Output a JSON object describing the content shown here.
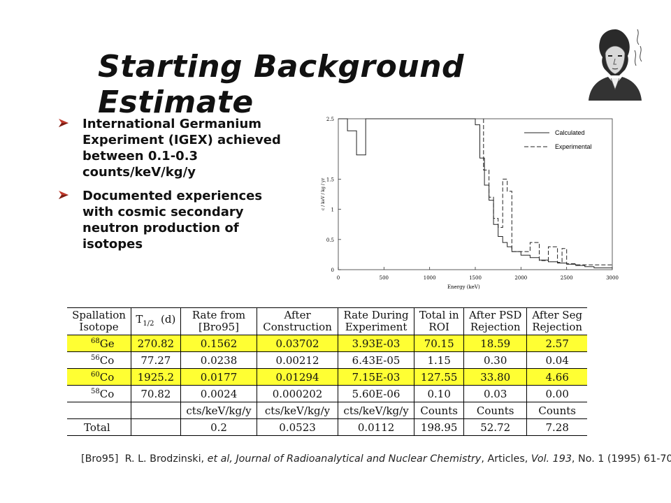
{
  "slide": {
    "title": "Starting Background Estimate",
    "bullets": [
      "International Germanium Experiment (IGEX) achieved between 0.1-0.3 counts/keV/kg/y",
      "Documented experiences with cosmic secondary neutron production of isotopes"
    ]
  },
  "chart_data": {
    "type": "line",
    "xlabel": "Energy (keV)",
    "ylabel": "c / keV / kg / yr",
    "xlim": [
      0,
      3000
    ],
    "ylim": [
      0,
      2.5
    ],
    "x_ticks": [
      "0",
      "500",
      "1000",
      "1500",
      "2000",
      "2500",
      "3000"
    ],
    "y_ticks": [
      "0",
      "0.5",
      "1",
      "1.5",
      "2.5"
    ],
    "legend_position": "top-right",
    "series": [
      {
        "name": "Calculated",
        "style": "solid",
        "x": [
          0,
          100,
          100,
          200,
          200,
          300,
          300,
          1500,
          1500,
          1550,
          1550,
          1600,
          1600,
          1650,
          1650,
          1700,
          1700,
          1750,
          1750,
          1800,
          1800,
          1850,
          1850,
          1900,
          1900,
          2000,
          2000,
          2100,
          2100,
          2200,
          2200,
          2300,
          2300,
          2400,
          2400,
          2500,
          2500,
          2600,
          2600,
          2700,
          2700,
          2800,
          2800,
          3000
        ],
        "y": [
          2.5,
          2.5,
          2.3,
          2.3,
          1.9,
          1.9,
          2.5,
          2.5,
          2.4,
          2.4,
          1.85,
          1.85,
          1.4,
          1.4,
          1.15,
          1.15,
          0.75,
          0.75,
          0.55,
          0.55,
          0.45,
          0.45,
          0.38,
          0.38,
          0.3,
          0.3,
          0.24,
          0.24,
          0.2,
          0.2,
          0.16,
          0.16,
          0.13,
          0.13,
          0.11,
          0.11,
          0.09,
          0.09,
          0.07,
          0.07,
          0.05,
          0.05,
          0.03,
          0.03
        ]
      },
      {
        "name": "Experimental",
        "style": "dashed",
        "x": [
          1590,
          1590,
          1650,
          1650,
          1700,
          1700,
          1750,
          1750,
          1800,
          1800,
          1850,
          1850,
          1900,
          1900,
          2100,
          2100,
          2200,
          2200,
          2300,
          2300,
          2400,
          2400,
          2450,
          2450,
          2500,
          2500,
          2600,
          2600,
          2700,
          2700,
          3000
        ],
        "y": [
          2.5,
          1.65,
          1.65,
          1.2,
          1.2,
          0.85,
          0.85,
          0.7,
          0.7,
          1.5,
          1.5,
          1.3,
          1.3,
          0.3,
          0.3,
          0.45,
          0.45,
          0.15,
          0.15,
          0.38,
          0.38,
          0.12,
          0.12,
          0.35,
          0.35,
          0.1,
          0.1,
          0.08,
          0.08,
          0.08,
          0.08
        ]
      }
    ]
  },
  "table": {
    "headers": [
      [
        "Spallation",
        "Isotope"
      ],
      [
        "T1/2 (d)",
        ""
      ],
      [
        "Rate from",
        "[Bro95]"
      ],
      [
        "After",
        "Construction"
      ],
      [
        "Rate During",
        "Experiment"
      ],
      [
        "Total in",
        "ROI"
      ],
      [
        "After PSD",
        "Rejection"
      ],
      [
        "After Seg",
        "Rejection"
      ]
    ],
    "rows": [
      {
        "mass": "68",
        "element": "Ge",
        "values": [
          "270.82",
          "0.1562",
          "0.03702",
          "3.93E-03",
          "70.15",
          "18.59",
          "2.57"
        ],
        "highlight": true
      },
      {
        "mass": "56",
        "element": "Co",
        "values": [
          "77.27",
          "0.0238",
          "0.00212",
          "6.43E-05",
          "1.15",
          "0.30",
          "0.04"
        ],
        "highlight": false
      },
      {
        "mass": "60",
        "element": "Co",
        "values": [
          "1925.2",
          "0.0177",
          "0.01294",
          "7.15E-03",
          "127.55",
          "33.80",
          "4.66"
        ],
        "highlight": true
      },
      {
        "mass": "58",
        "element": "Co",
        "values": [
          "70.82",
          "0.0024",
          "0.000202",
          "5.60E-06",
          "0.10",
          "0.03",
          "0.00"
        ],
        "highlight": false
      }
    ],
    "units": [
      "",
      "",
      "cts/keV/kg/y",
      "cts/keV/kg/y",
      "cts/keV/kg/y",
      "Counts",
      "Counts",
      "Counts"
    ],
    "total": [
      "Total",
      "",
      "0.2",
      "0.0523",
      "0.0112",
      "198.95",
      "52.72",
      "7.28"
    ]
  },
  "reference": {
    "tag": "[Bro95]",
    "authors": "R. L. Brodzinski,",
    "etal": "et al,",
    "journal": "Journal of Radioanalytical and Nuclear Chemistry",
    "articles": ", Articles,",
    "vol": "Vol. 193",
    "rest": ", No. 1 (1995) 61-70."
  }
}
